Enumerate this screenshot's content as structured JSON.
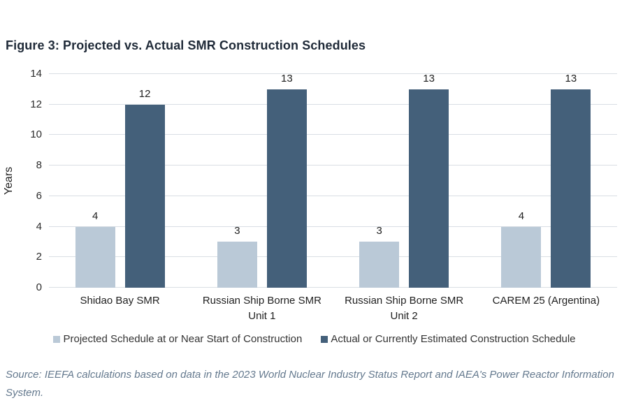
{
  "figure": {
    "title": "Figure 3: Projected vs. Actual SMR Construction Schedules",
    "source": "Source: IEEFA calculations based on data in the 2023 World Nuclear Industry Status Report and IAEA's Power Reactor Information System."
  },
  "chart_data": {
    "type": "bar",
    "title": "Figure 3: Projected vs. Actual SMR Construction Schedules",
    "categories": [
      "Shidao Bay SMR",
      "Russian Ship Borne SMR Unit 1",
      "Russian Ship Borne SMR Unit 2",
      "CAREM 25 (Argentina)"
    ],
    "series": [
      {
        "name": "Projected Schedule at or Near Start of Construction",
        "values": [
          4,
          3,
          3,
          4
        ],
        "color": "#bac9d7"
      },
      {
        "name": "Actual or Currently Estimated Construction Schedule",
        "values": [
          12,
          13,
          13,
          13
        ],
        "color": "#44607a"
      }
    ],
    "xlabel": "",
    "ylabel": "Years",
    "ylim": [
      0,
      14
    ],
    "ytick_step": 2,
    "grid": true,
    "data_labels": true,
    "legend_position": "bottom"
  }
}
